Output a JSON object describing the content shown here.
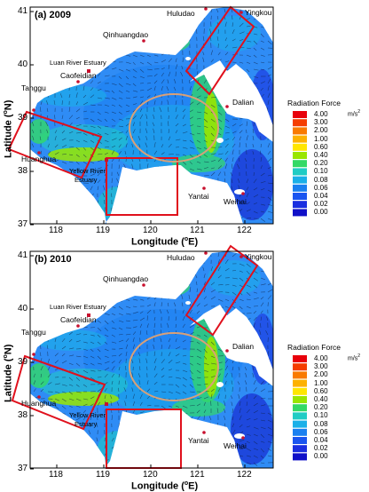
{
  "panels": [
    {
      "label": "(a) 2009",
      "places": {
        "huludao": "Huludao",
        "yingkou": "Yingkou",
        "qinhuangdao": "Qinhuangdao",
        "luan": "Luan River Estuary",
        "caofeidian": "Caofeidian",
        "tanggu": "Tanggu",
        "dalian": "Dalian",
        "huanghua": "Huanghua",
        "yellow1": "Yellow River",
        "yellow2": "Estuary",
        "yantai": "Yantai",
        "weihai": "Weihai"
      }
    },
    {
      "label": "(b) 2010",
      "places": {
        "huludao": "Huludao",
        "yingkou": "Yingkou",
        "qinhuangdao": "Qinhuangdao",
        "luan": "Luan River Estuary",
        "caofeidian": "Caofeidian",
        "tanggu": "Tanggu",
        "dalian": "Dalian",
        "huanghua": "Huanghua",
        "yellow1": "Yellow River",
        "yellow2": "Estuary",
        "yantai": "Yantai",
        "weihai": "Weihai"
      }
    }
  ],
  "axes": {
    "xlabel_prefix": "Longitude (",
    "xlabel_sup": "o",
    "xlabel_suffix": "E)",
    "ylabel_prefix": "Latitude (",
    "ylabel_sup": "o",
    "ylabel_suffix": "N)",
    "xticks": [
      "118",
      "119",
      "120",
      "121",
      "122"
    ],
    "yticks": [
      "41",
      "40",
      "39",
      "38",
      "37"
    ]
  },
  "legend": {
    "title": "Radiation Force",
    "unit": "m/s",
    "unit_sup": "2",
    "levels": [
      {
        "label": "4.00",
        "color": "#e8000b"
      },
      {
        "label": "3.00",
        "color": "#f53d00"
      },
      {
        "label": "2.00",
        "color": "#f97a00"
      },
      {
        "label": "1.00",
        "color": "#fdb100"
      },
      {
        "label": "0.60",
        "color": "#ffe600"
      },
      {
        "label": "0.40",
        "color": "#99e600"
      },
      {
        "label": "0.20",
        "color": "#33d966"
      },
      {
        "label": "0.10",
        "color": "#20ccc4"
      },
      {
        "label": "0.08",
        "color": "#1ab0e8"
      },
      {
        "label": "0.06",
        "color": "#1a80f0"
      },
      {
        "label": "0.04",
        "color": "#1a55f0"
      },
      {
        "label": "0.02",
        "color": "#1a2ee0"
      },
      {
        "label": "0.00",
        "color": "#1010c8"
      }
    ]
  },
  "colors": {
    "sea": "#2f8cf5",
    "box": "#e0101c",
    "ellipse": "#d9a078",
    "city": "#c8102e"
  }
}
